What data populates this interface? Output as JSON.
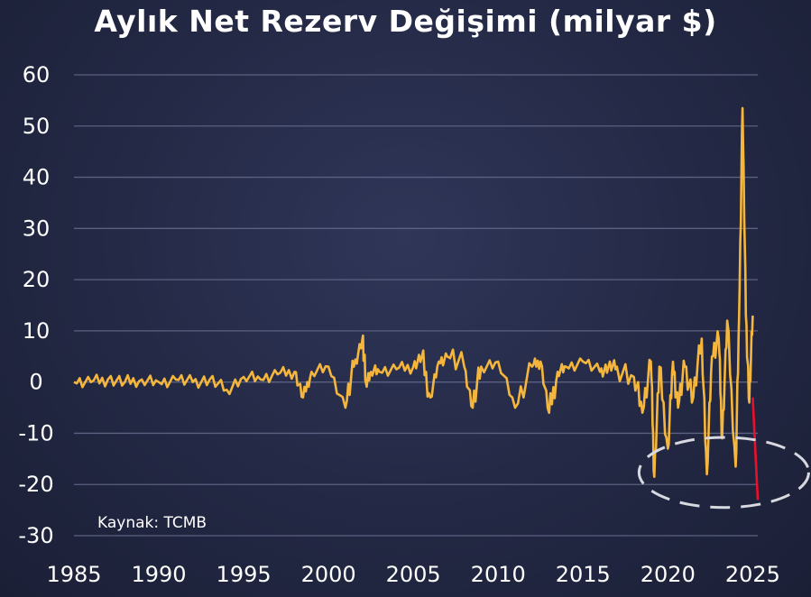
{
  "chart_data": {
    "type": "line",
    "title": "Aylık Net Rezerv Değişimi (milyar $)",
    "xlabel": "",
    "ylabel": "",
    "source": "Kaynak: TCMB",
    "xlim": [
      1985,
      2025.3
    ],
    "ylim": [
      -30,
      60
    ],
    "x_ticks": [
      "1985",
      "1990",
      "1995",
      "2000",
      "2005",
      "2010",
      "2015",
      "2020",
      "2025"
    ],
    "y_ticks": [
      "60",
      "50",
      "40",
      "30",
      "20",
      "10",
      "0",
      "-10",
      "-20",
      "-30"
    ],
    "grid": true,
    "legend": "none",
    "highlight": {
      "shape": "dashed ellipse",
      "x_range": [
        2018.3,
        2028.3
      ],
      "y_range": [
        -24.5,
        -10.8
      ]
    },
    "series": [
      {
        "color": "#f4b63c",
        "x": [
          1985,
          1986,
          1987,
          1988,
          1989,
          1990,
          1991,
          1992,
          1993,
          1994,
          1995,
          1996,
          1997,
          1998,
          1998.5,
          1999,
          2000,
          2001,
          2001.5,
          2002,
          2002.2,
          2002.5,
          2003,
          2004,
          2005,
          2005.5,
          2006,
          2006.5,
          2007,
          2008,
          2008.5,
          2009,
          2010,
          2011,
          2012,
          2012.5,
          2013,
          2013.5,
          2014,
          2015,
          2016,
          2016.5,
          2017,
          2018,
          2018.5,
          2019,
          2019.2,
          2019.5,
          2020,
          2020.3,
          2020.6,
          2021,
          2021.5,
          2022,
          2022.3,
          2022.6,
          2023,
          2023.2,
          2023.5,
          2024,
          2024.2,
          2024.4,
          2024.6,
          2024.8,
          2025.0
        ],
        "y": [
          0,
          0,
          0.5,
          0,
          0.5,
          0,
          0.5,
          0,
          0.5,
          -1.5,
          1,
          0.5,
          1.5,
          2,
          -3,
          2,
          3,
          -5,
          3,
          8.5,
          0,
          2,
          2,
          2.5,
          3,
          5,
          -3,
          4,
          5,
          3,
          -5,
          3,
          4,
          -5,
          3,
          4,
          -6,
          2,
          3,
          4,
          2,
          3,
          3,
          1,
          -6,
          4,
          -18.5,
          3,
          -13,
          4,
          -5,
          3,
          -3,
          8.5,
          -18,
          5,
          8.5,
          -11,
          12,
          -16.5,
          13,
          53.5,
          13,
          -4,
          13
        ]
      },
      {
        "color": "#e8102a",
        "x": [
          2025.0,
          2025.3
        ],
        "y": [
          -3,
          -23
        ]
      }
    ]
  }
}
